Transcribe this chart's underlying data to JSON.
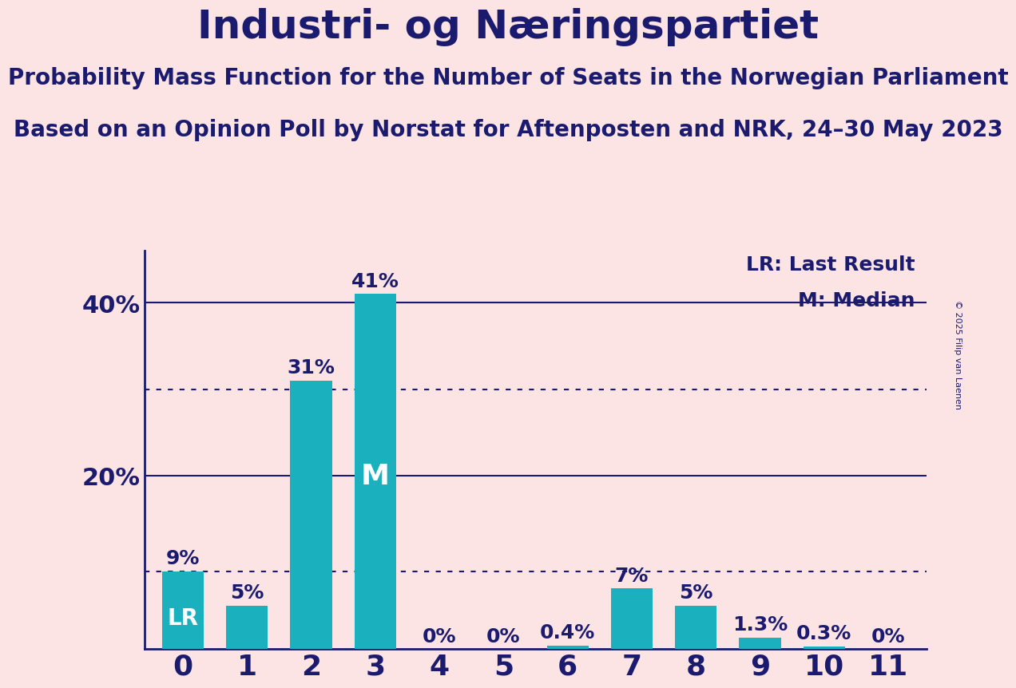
{
  "title": "Industri- og Næringspartiet",
  "subtitle1": "Probability Mass Function for the Number of Seats in the Norwegian Parliament",
  "subtitle2": "Based on an Opinion Poll by Norstat for Aftenposten and NRK, 24–30 May 2023",
  "copyright": "© 2025 Filip van Laenen",
  "categories": [
    0,
    1,
    2,
    3,
    4,
    5,
    6,
    7,
    8,
    9,
    10,
    11
  ],
  "values": [
    9.0,
    5.0,
    31.0,
    41.0,
    0.0,
    0.0,
    0.4,
    7.0,
    5.0,
    1.3,
    0.3,
    0.0
  ],
  "bar_color": "#1ab0be",
  "background_color": "#fce4e4",
  "text_color": "#1a1a6e",
  "axis_color": "#1a1a6e",
  "label_LR": "LR",
  "label_M": "M",
  "LR_index": 0,
  "M_index": 3,
  "legend_LR": "LR: Last Result",
  "legend_M": "M: Median",
  "ylim": [
    0,
    46
  ],
  "dotted_lines": [
    9.0,
    30.0
  ],
  "solid_lines": [
    20.0,
    40.0
  ],
  "bar_label_fontsize": 18,
  "title_fontsize": 36,
  "subtitle_fontsize": 20,
  "ytick_fontsize": 22,
  "xtick_fontsize": 26,
  "label_inside_fontsize": 20,
  "legend_fontsize": 18,
  "bar_width": 0.65
}
